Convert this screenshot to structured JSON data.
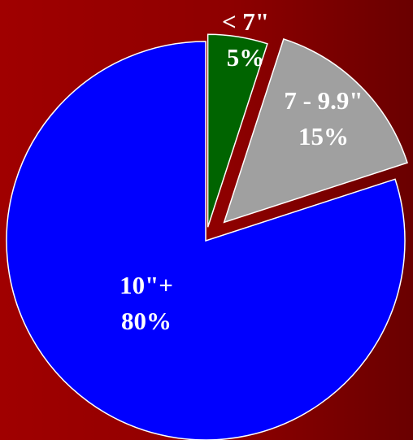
{
  "chart_data": {
    "type": "pie",
    "title": "",
    "slices": [
      {
        "label": "< 7\"",
        "value": 5,
        "pct_label": "5%",
        "color": "#006400",
        "exploded": true
      },
      {
        "label": "7 - 9.9\"",
        "value": 15,
        "pct_label": "15%",
        "color": "#a0a0a0",
        "exploded": true
      },
      {
        "label": "10\"+",
        "value": 80,
        "pct_label": "80%",
        "color": "#0000ff",
        "exploded": false
      }
    ],
    "start_angle": "top (12 o'clock), clockwise",
    "legend": "none (labels inside slices)"
  }
}
